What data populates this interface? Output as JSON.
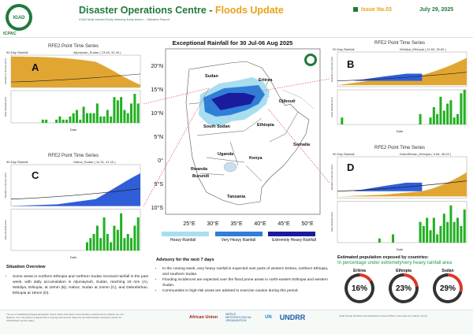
{
  "header": {
    "logo_text": "ICPAC",
    "logo_badge": "IGAD",
    "title_a": "Disaster Operations Centre - ",
    "title_b": "Floods Update",
    "subtitle": "IGAD Multi-Hazard Early Warning Early Action – Situation Report",
    "issue": "Issue No.03",
    "date": "July 29, 2025"
  },
  "map": {
    "title": "Exceptional Rainfall for 30 Jul-06 Aug 2025",
    "lat_labels": [
      "20°N",
      "15°N",
      "10°N",
      "5°N",
      "0°",
      "5°S",
      "10°S"
    ],
    "lon_labels": [
      "25°E",
      "30°E",
      "35°E",
      "40°E",
      "45°E",
      "50°E"
    ],
    "countries": [
      "Sudan",
      "Eritrea",
      "Djibouti",
      "South Sudan",
      "Ethiopia",
      "Somalia",
      "Uganda",
      "Kenya",
      "Rwanda",
      "Burundi",
      "Tanzania"
    ],
    "legend": [
      {
        "label": "Heavy Rainfall",
        "color": "#a9def0"
      },
      {
        "label": "Very Heavy Rainfall",
        "color": "#2f7ed8"
      },
      {
        "label": "Extremely Heavy Rainfall",
        "color": "#1b1b9e"
      }
    ]
  },
  "panels": [
    {
      "letter": "A",
      "title": "RFE2 Point Time Series",
      "sub": "90-Day Rainfall",
      "loc": "Aljuniynah_Sudan ( 13.45, 32.44 )",
      "y1": "Rainfall vs Normal (mm)",
      "y2": "Daily Rainfall (mm)",
      "x": "Date"
    },
    {
      "letter": "B",
      "title": "RFE2 Point Time Series",
      "sub": "90-Day Rainfall",
      "loc": "Weldiya_Ethiopia ( 11.83, 39.60 )",
      "y1": "Rainfall vs Normal (mm)",
      "y2": "Daily Rainfall (mm)",
      "x": "Date"
    },
    {
      "letter": "C",
      "title": "RFE2 Point Time Series",
      "sub": "90-Day Rainfall",
      "loc": "Haboz_Sudan ( 14.31, 31.10 )",
      "y1": "Rainfall vs Normal (mm)",
      "y2": "Daily Rainfall (mm)",
      "x": "Date"
    },
    {
      "letter": "D",
      "title": "RFE2 Point Time Series",
      "sub": "90-Day Rainfall",
      "loc": "DebreBirhan_Ethiopia ( 9.68, 38.53 )",
      "y1": "Rainfall vs Normal (mm)",
      "y2": "Daily Rainfall (mm)",
      "x": "Date"
    }
  ],
  "situation": {
    "heading": "Situation Overview",
    "text": "Some areas in northern Ethiopia and northern Sudan received rainfall in the past week, with daily accumulation in Aljuniaynah, Sudan, reaching 19 mm (A), Weldiya, Ethiopia, at 18mm (B), Haboz, Sudan at 24mm (C), and Debrebirhan, Ethiopia at 19mm (D)."
  },
  "advisory": {
    "heading": "Advisory for the next 7 days",
    "items": [
      "In the coming week, very heavy rainfall is expected over parts of western Eritrea, northern Ethiopia, and southern Sudan.",
      "Flooding incidences are expected over the flood prone areas in north-eastern Ethiopia and western Sudan.",
      "Communities in high-risk areas are advised to exercise caution during this period."
    ]
  },
  "population": {
    "heading": "Estimated population exposed by countries:",
    "subheading": "In percentage under extremely/very heavy rainfall area",
    "countries": [
      {
        "name": "Eritrea",
        "pct": 16,
        "label": "16%"
      },
      {
        "name": "Ethiopia",
        "pct": 23,
        "label": "23%"
      },
      {
        "name": "Sudan",
        "pct": 29,
        "label": "29%"
      }
    ],
    "ring_color": "#d83a2a",
    "ring_bg": "#333333"
  },
  "footer": {
    "left": "The use of satellite/hydrological-geographic names makes information conventionally considered as for disaster use. For disasters, the rural position is aligned that is ongoing informed and related by the IGAD Disaster Operations Centre for ICPAC/IGAD member states.",
    "right": "IGAD Climate Prediction and Applications Centre (ICPAC), www.icpac.net | Nairobi, Kenya",
    "partners": [
      "African Union",
      "WORLD METEOROLOGICAL ORGANIZATION",
      "UN",
      "UNDRR"
    ]
  }
}
